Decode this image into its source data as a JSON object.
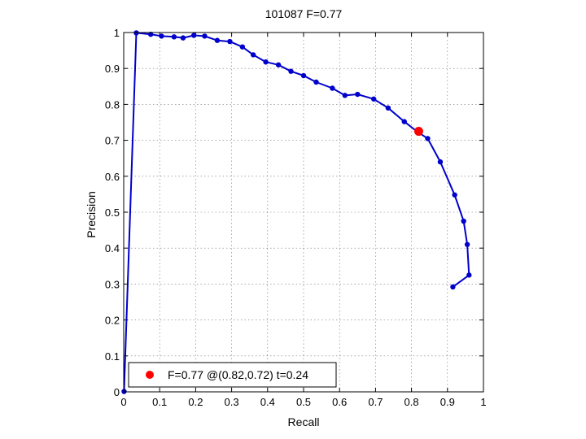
{
  "chart_data": {
    "type": "line",
    "title": "101087 F=0.77",
    "xlabel": "Recall",
    "ylabel": "Precision",
    "xlim": [
      0,
      1
    ],
    "ylim": [
      0,
      1
    ],
    "x_ticks": [
      "0",
      "0.1",
      "0.2",
      "0.3",
      "0.4",
      "0.5",
      "0.6",
      "0.7",
      "0.8",
      "0.9",
      "1"
    ],
    "y_ticks": [
      "0",
      "0.1",
      "0.2",
      "0.3",
      "0.4",
      "0.5",
      "0.6",
      "0.7",
      "0.8",
      "0.9",
      "1"
    ],
    "grid": true,
    "legend_position": "bottom-left",
    "series": [
      {
        "color": "#0000cc",
        "marker": "dot",
        "x": [
          0.001,
          0.035,
          0.075,
          0.105,
          0.14,
          0.165,
          0.195,
          0.225,
          0.26,
          0.295,
          0.33,
          0.36,
          0.395,
          0.43,
          0.465,
          0.5,
          0.535,
          0.58,
          0.615,
          0.65,
          0.695,
          0.735,
          0.78,
          0.815,
          0.845,
          0.88,
          0.92,
          0.945,
          0.955,
          0.96,
          0.915
        ],
        "y": [
          0.001,
          0.999,
          0.995,
          0.99,
          0.988,
          0.985,
          0.992,
          0.99,
          0.978,
          0.975,
          0.96,
          0.938,
          0.918,
          0.91,
          0.892,
          0.88,
          0.862,
          0.845,
          0.825,
          0.828,
          0.815,
          0.79,
          0.752,
          0.725,
          0.705,
          0.64,
          0.548,
          0.475,
          0.41,
          0.325,
          0.292
        ]
      }
    ],
    "highlight": {
      "x": 0.82,
      "y": 0.725,
      "color": "#ff0000",
      "label": "F=0.77 @(0.82,0.72) t=0.24"
    }
  }
}
